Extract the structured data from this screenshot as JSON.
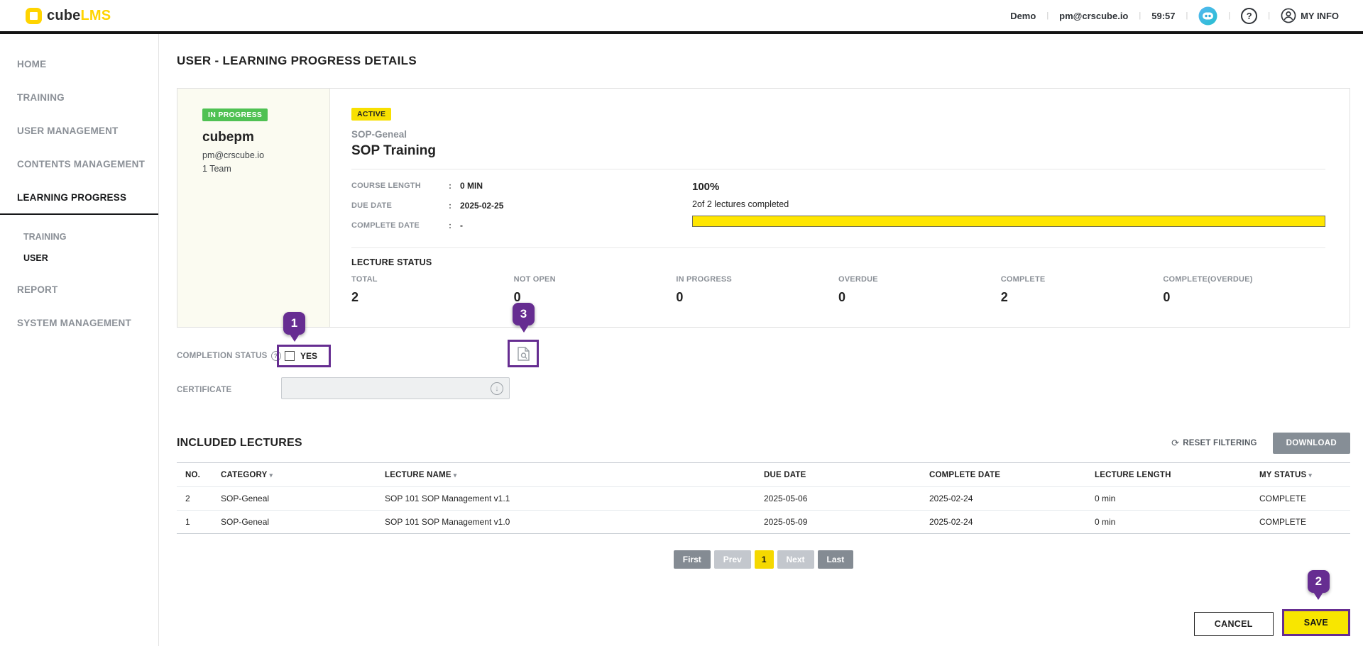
{
  "header": {
    "logo_cube": "cube",
    "logo_lms": "LMS",
    "env": "Demo",
    "email": "pm@crscube.io",
    "timer": "59:57",
    "my_info": "MY INFO"
  },
  "sidebar": {
    "items": [
      {
        "label": "HOME",
        "active": false
      },
      {
        "label": "TRAINING",
        "active": false
      },
      {
        "label": "USER MANAGEMENT",
        "active": false
      },
      {
        "label": "CONTENTS MANAGEMENT",
        "active": false
      },
      {
        "label": "LEARNING PROGRESS",
        "active": true
      },
      {
        "label": "TRAINING",
        "active": false
      },
      {
        "label": "USER",
        "active": true
      },
      {
        "label": "REPORT",
        "active": false
      },
      {
        "label": "SYSTEM MANAGEMENT",
        "active": false
      }
    ]
  },
  "page": {
    "title": "USER - LEARNING PROGRESS DETAILS"
  },
  "course_card": {
    "user_status_badge": "IN PROGRESS",
    "username": "cubepm",
    "user_email": "pm@crscube.io",
    "team": "1 Team",
    "course_status_badge": "ACTIVE",
    "category": "SOP-Geneal",
    "course_title": "SOP Training",
    "fields": [
      {
        "label": "COURSE LENGTH",
        "colon": ":",
        "value": "0 MIN"
      },
      {
        "label": "DUE DATE",
        "colon": ":",
        "value": "2025-02-25"
      },
      {
        "label": "COMPLETE DATE",
        "colon": ":",
        "value": "-"
      }
    ],
    "progress_percent": "100%",
    "progress_text": "2of 2 lectures completed",
    "progress_value": 100,
    "lecture_status": {
      "title": "LECTURE STATUS",
      "stats": [
        {
          "label": "TOTAL",
          "value": "2"
        },
        {
          "label": "NOT OPEN",
          "value": "0"
        },
        {
          "label": "IN PROGRESS",
          "value": "0"
        },
        {
          "label": "OVERDUE",
          "value": "0"
        },
        {
          "label": "COMPLETE",
          "value": "2"
        },
        {
          "label": "COMPLETE(OVERDUE)",
          "value": "0"
        }
      ]
    }
  },
  "form": {
    "completion_status_label": "COMPLETION STATUS",
    "completion_checkbox_label": "YES",
    "completion_checked": false,
    "certificate_label": "CERTIFICATE",
    "certificate_value": ""
  },
  "lectures": {
    "title": "INCLUDED LECTURES",
    "reset_filtering": "RESET FILTERING",
    "download": "DOWNLOAD",
    "columns": {
      "no": "NO.",
      "category": "CATEGORY",
      "name": "LECTURE NAME",
      "due": "DUE DATE",
      "complete": "COMPLETE DATE",
      "length": "LECTURE LENGTH",
      "status": "MY STATUS"
    },
    "rows": [
      {
        "no": "2",
        "category": "SOP-Geneal",
        "name": "SOP 101 SOP Management v1.1",
        "due": "2025-05-06",
        "complete": "2025-02-24",
        "length": "0 min",
        "status": "COMPLETE"
      },
      {
        "no": "1",
        "category": "SOP-Geneal",
        "name": "SOP 101 SOP Management v1.0",
        "due": "2025-05-09",
        "complete": "2025-02-24",
        "length": "0 min",
        "status": "COMPLETE"
      }
    ],
    "pagination": {
      "first": "First",
      "prev": "Prev",
      "page": "1",
      "next": "Next",
      "last": "Last"
    }
  },
  "actions": {
    "cancel": "CANCEL",
    "save": "SAVE"
  },
  "annotations": {
    "one": "1",
    "two": "2",
    "three": "3"
  },
  "icons": {
    "filter_arrow": "▾",
    "refresh": "⟳",
    "help_mark": "?",
    "question_mark": "?",
    "download_arrow": "↓"
  },
  "colors": {
    "brand_yellow": "#ffd400",
    "badge_yellow": "#f8e000",
    "badge_green": "#4fc153",
    "progress_yellow": "#ffe600",
    "annotation_purple": "#662d91",
    "button_gray": "#868e96",
    "pagination_active_yellow": "#f5d800"
  }
}
